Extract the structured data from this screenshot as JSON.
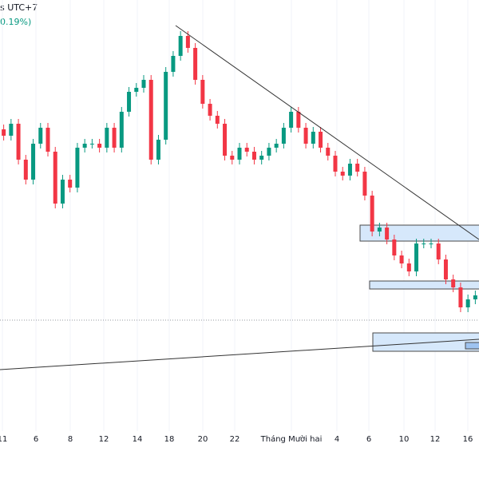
{
  "header": {
    "timezone_text": "s UTC+7",
    "change_text": "0.19%)"
  },
  "colors": {
    "up": "#089981",
    "down": "#f23645",
    "zone_fill": "#d6e8fb",
    "zone_stroke": "#4a4a4a",
    "line": "#333333"
  },
  "chart_data": {
    "type": "candlestick",
    "x_tick_labels": [
      "11",
      "6",
      "8",
      "12",
      "14",
      "18",
      "20",
      "22",
      "Tháng Mười hai",
      "4",
      "6",
      "10",
      "12",
      "16"
    ],
    "closes": [
      430,
      445,
      400,
      375,
      420,
      440,
      410,
      345,
      375,
      365,
      415,
      420,
      420,
      415,
      440,
      415,
      460,
      485,
      490,
      500,
      400,
      425,
      510,
      530,
      555,
      540,
      500,
      470,
      455,
      445,
      405,
      400,
      415,
      410,
      400,
      405,
      415,
      420,
      440,
      460,
      440,
      420,
      435,
      415,
      405,
      385,
      380,
      395,
      385,
      355,
      310,
      315,
      300,
      280,
      270,
      260,
      295,
      295,
      295,
      275,
      250,
      240,
      215,
      225,
      230
    ],
    "grid": true,
    "drawings": [
      "descending trendline",
      "ascending trendline",
      "three supply/demand zones",
      "dotted price line"
    ]
  }
}
